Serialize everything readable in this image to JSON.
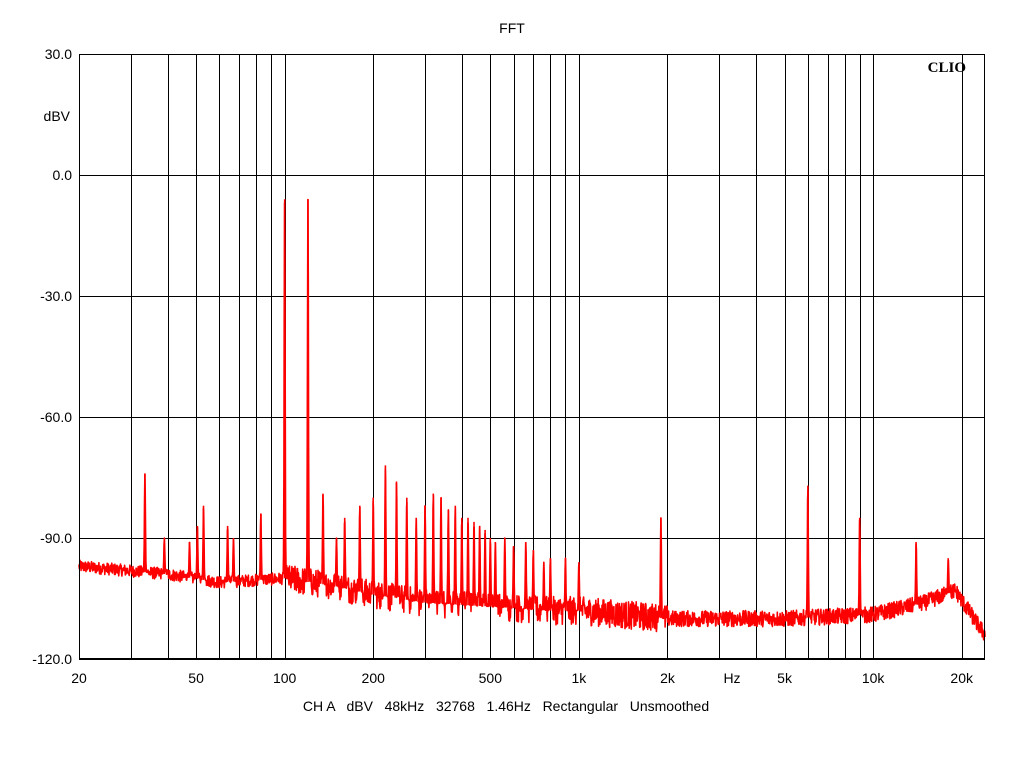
{
  "chart_data": {
    "type": "line",
    "title": "FFT",
    "brand": "CLIO",
    "ylabel": "dBV",
    "xlabel": "Hz",
    "footer": "CH A   dBV   48kHz   32768   1.46Hz   Rectangular   Unsmoothed",
    "x_scale": "log",
    "xlim": [
      20,
      24000
    ],
    "ylim": [
      -120,
      30
    ],
    "grid": true,
    "y_ticks": [
      30,
      0,
      -30,
      -60,
      -90,
      -120
    ],
    "y_tick_labels": [
      "30.0",
      "0.0",
      "-30.0",
      "-60.0",
      "-90.0",
      "-120.0"
    ],
    "x_ticks": [
      20,
      50,
      100,
      200,
      500,
      1000,
      2000,
      5000,
      10000,
      20000
    ],
    "x_tick_labels": [
      "20",
      "50",
      "100",
      "200",
      "500",
      "1k",
      "2k",
      "5k",
      "10k",
      "20k"
    ],
    "x_grid": [
      30,
      40,
      50,
      60,
      70,
      80,
      90,
      100,
      200,
      300,
      400,
      500,
      600,
      700,
      800,
      900,
      1000,
      2000,
      3000,
      4000,
      5000,
      6000,
      7000,
      8000,
      9000,
      10000,
      20000
    ],
    "series": [
      {
        "color": "#ff0000",
        "noise_floor": [
          [
            20,
            -97
          ],
          [
            40,
            -99
          ],
          [
            60,
            -101
          ],
          [
            100,
            -100
          ],
          [
            150,
            -102
          ],
          [
            200,
            -104
          ],
          [
            300,
            -106
          ],
          [
            500,
            -107
          ],
          [
            800,
            -108
          ],
          [
            1000,
            -108
          ],
          [
            2000,
            -110
          ],
          [
            5000,
            -110
          ],
          [
            10000,
            -109
          ],
          [
            15000,
            -106
          ],
          [
            19000,
            -103
          ],
          [
            22000,
            -110
          ],
          [
            24000,
            -114
          ]
        ],
        "peaks": [
          [
            33.5,
            -74
          ],
          [
            39,
            -90
          ],
          [
            47.5,
            -91
          ],
          [
            50.5,
            -87
          ],
          [
            53,
            -82
          ],
          [
            64,
            -87
          ],
          [
            67,
            -90
          ],
          [
            83,
            -84
          ],
          [
            100,
            -6
          ],
          [
            120,
            -6
          ],
          [
            135,
            -79
          ],
          [
            150,
            -90
          ],
          [
            160,
            -85
          ],
          [
            180,
            -82
          ],
          [
            200,
            -80
          ],
          [
            220,
            -72
          ],
          [
            240,
            -76
          ],
          [
            260,
            -80
          ],
          [
            280,
            -85
          ],
          [
            300,
            -82
          ],
          [
            320,
            -79
          ],
          [
            340,
            -80
          ],
          [
            360,
            -83
          ],
          [
            380,
            -82
          ],
          [
            400,
            -85
          ],
          [
            420,
            -85
          ],
          [
            440,
            -86
          ],
          [
            460,
            -87
          ],
          [
            480,
            -88
          ],
          [
            500,
            -90
          ],
          [
            520,
            -91
          ],
          [
            560,
            -90
          ],
          [
            600,
            -92
          ],
          [
            660,
            -91
          ],
          [
            700,
            -93
          ],
          [
            760,
            -96
          ],
          [
            800,
            -95
          ],
          [
            900,
            -95
          ],
          [
            1000,
            -96
          ],
          [
            1900,
            -85
          ],
          [
            6000,
            -77
          ],
          [
            9000,
            -85
          ],
          [
            14000,
            -91
          ],
          [
            18000,
            -95
          ]
        ]
      }
    ]
  }
}
